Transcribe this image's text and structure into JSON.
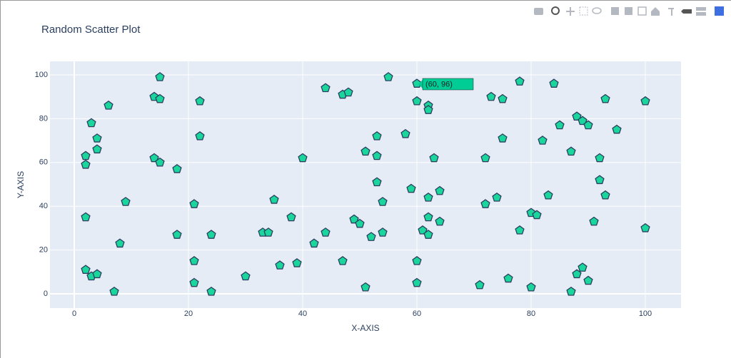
{
  "chart_data": {
    "type": "scatter",
    "title": "Random Scatter Plot",
    "x_label": "X-AXIS",
    "y_label": "Y-AXIS",
    "x": [
      2,
      2,
      2,
      2,
      3,
      3,
      4,
      4,
      4,
      6,
      7,
      8,
      9,
      14,
      14,
      15,
      15,
      15,
      18,
      18,
      21,
      21,
      21,
      22,
      22,
      24,
      24,
      30,
      33,
      34,
      35,
      36,
      38,
      39,
      40,
      42,
      44,
      44,
      47,
      47,
      48,
      49,
      50,
      51,
      51,
      52,
      53,
      53,
      53,
      54,
      54,
      55,
      58,
      59,
      60,
      60,
      60,
      60,
      61,
      62,
      62,
      62,
      62,
      62,
      63,
      64,
      64,
      71,
      72,
      72,
      73,
      74,
      75,
      75,
      76,
      78,
      78,
      80,
      80,
      81,
      82,
      83,
      84,
      85,
      87,
      87,
      88,
      88,
      89,
      89,
      90,
      90,
      91,
      92,
      92,
      93,
      93,
      95,
      100,
      100
    ],
    "values": [
      63,
      59,
      35,
      11,
      78,
      8,
      71,
      66,
      9,
      86,
      1,
      23,
      42,
      90,
      62,
      99,
      89,
      60,
      57,
      27,
      41,
      15,
      5,
      88,
      72,
      27,
      1,
      8,
      28,
      28,
      43,
      13,
      35,
      14,
      62,
      23,
      94,
      28,
      91,
      15,
      92,
      34,
      32,
      65,
      3,
      26,
      72,
      63,
      51,
      42,
      28,
      99,
      73,
      48,
      96,
      88,
      15,
      5,
      29,
      86,
      84,
      44,
      35,
      27,
      62,
      47,
      33,
      4,
      62,
      41,
      90,
      44,
      89,
      71,
      7,
      97,
      29,
      37,
      3,
      36,
      70,
      45,
      96,
      77,
      65,
      1,
      81,
      9,
      79,
      12,
      77,
      6,
      33,
      62,
      52,
      89,
      45,
      75,
      88,
      30
    ],
    "color": "#1ad69c",
    "marker_line_color": "#2a3f5f",
    "xlim": [
      -4.25,
      106.25
    ],
    "ylim": [
      -6.5,
      106.2
    ],
    "xticks": [
      0,
      20,
      40,
      60,
      80,
      100
    ],
    "yticks": [
      0,
      20,
      40,
      60,
      80,
      100
    ],
    "grid": true,
    "hover_label": "(60, 96)"
  }
}
